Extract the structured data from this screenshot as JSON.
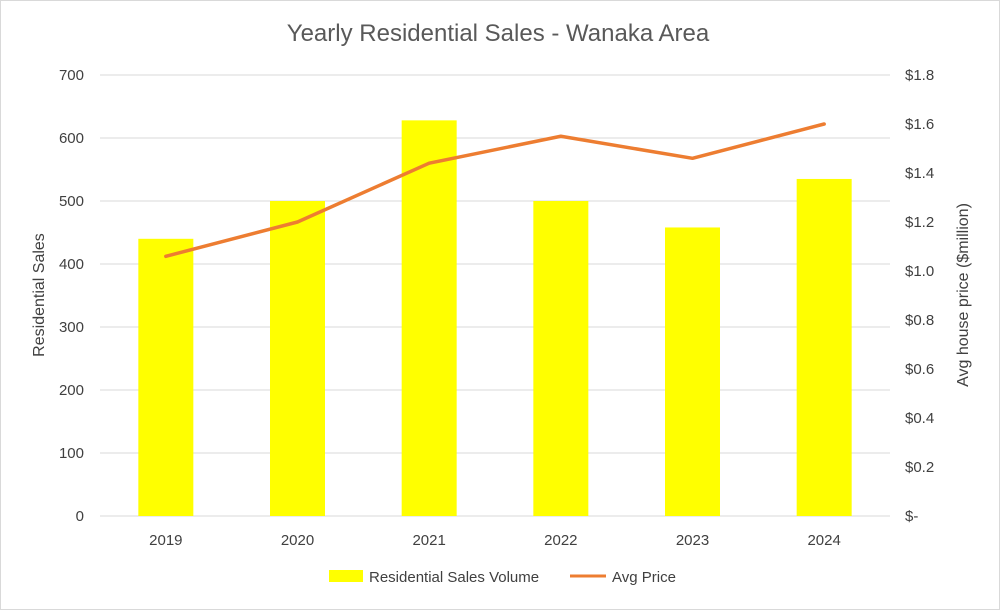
{
  "chart_data": {
    "type": "bar+line",
    "title": "Yearly Residential Sales - Wanaka Area",
    "categories": [
      "2019",
      "2020",
      "2021",
      "2022",
      "2023",
      "2024"
    ],
    "series": [
      {
        "name": "Residential Sales Volume",
        "type": "bar",
        "axis": "left",
        "color": "#FFFF00",
        "values": [
          440,
          500,
          628,
          500,
          458,
          535
        ]
      },
      {
        "name": "Avg Price",
        "type": "line",
        "axis": "right",
        "color": "#ED7D31",
        "values": [
          1.06,
          1.2,
          1.44,
          1.55,
          1.46,
          1.6
        ]
      }
    ],
    "ylabel": "Residential Sales",
    "ylim": [
      0,
      700
    ],
    "yticks": [
      "0",
      "100",
      "200",
      "300",
      "400",
      "500",
      "600",
      "700"
    ],
    "y2label": "Avg house price ($million)",
    "y2lim": [
      0,
      1.8
    ],
    "y2ticks": [
      "$-",
      "$0.2",
      "$0.4",
      "$0.6",
      "$0.8",
      "$1.0",
      "$1.2",
      "$1.4",
      "$1.6",
      "$1.8"
    ],
    "grid": true,
    "legend_position": "bottom",
    "gridline_color": "#d9d9d9"
  }
}
